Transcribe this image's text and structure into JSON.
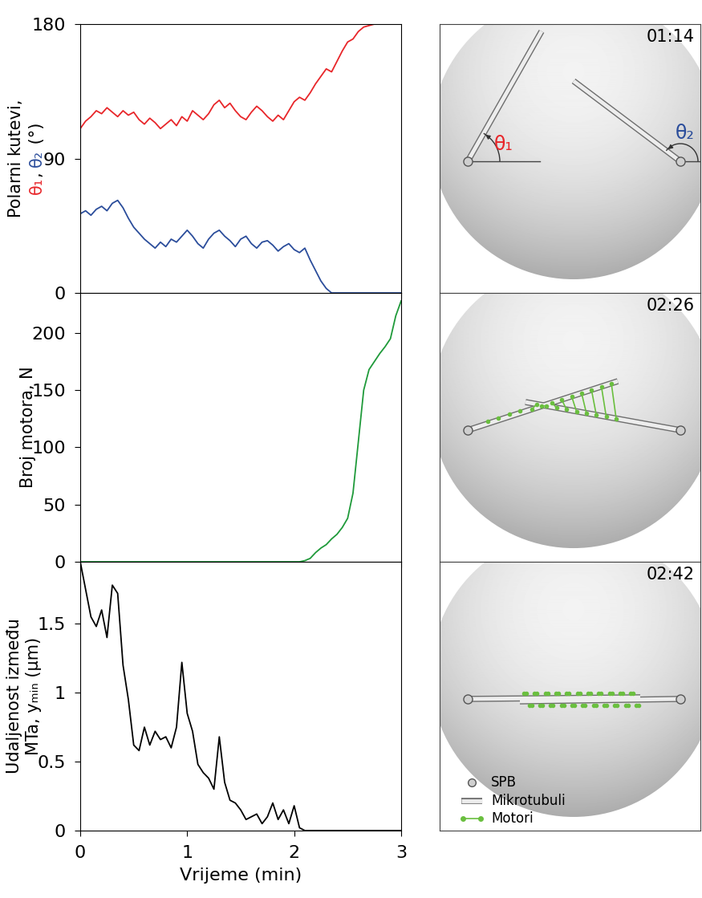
{
  "chart_data": [
    {
      "type": "line",
      "ylabel": "Polarni kutevi,",
      "ylabel_line2": [
        {
          "text": "θ₁",
          "color": "#e8262a"
        },
        {
          "text": ", ",
          "color": "#000000"
        },
        {
          "text": "θ₂",
          "color": "#2b4d9b"
        },
        {
          "text": " (°)",
          "color": "#000000"
        }
      ],
      "x": [
        0,
        0.05,
        0.1,
        0.15,
        0.2,
        0.25,
        0.3,
        0.35,
        0.4,
        0.45,
        0.5,
        0.55,
        0.6,
        0.65,
        0.7,
        0.75,
        0.8,
        0.85,
        0.9,
        0.95,
        1,
        1.05,
        1.1,
        1.15,
        1.2,
        1.25,
        1.3,
        1.35,
        1.4,
        1.45,
        1.5,
        1.55,
        1.6,
        1.65,
        1.7,
        1.75,
        1.8,
        1.85,
        1.9,
        1.95,
        2,
        2.05,
        2.1,
        2.15,
        2.2,
        2.25,
        2.3,
        2.35,
        2.4,
        2.45,
        2.5,
        2.55,
        2.6,
        2.65,
        2.7,
        2.75,
        2.8,
        2.85,
        2.9,
        2.95,
        3
      ],
      "series": [
        {
          "color": "#e8262a",
          "values": [
            110,
            115,
            118,
            122,
            120,
            124,
            121,
            118,
            122,
            119,
            121,
            116,
            113,
            117,
            114,
            110,
            113,
            116,
            112,
            118,
            115,
            122,
            119,
            116,
            120,
            126,
            129,
            124,
            127,
            122,
            118,
            116,
            121,
            125,
            122,
            118,
            115,
            119,
            116,
            122,
            128,
            131,
            129,
            134,
            140,
            145,
            150,
            148,
            155,
            162,
            168,
            170,
            175,
            178,
            179,
            180,
            180,
            180,
            180,
            180,
            180
          ]
        },
        {
          "color": "#2b4d9b",
          "values": [
            53,
            55,
            52,
            56,
            58,
            55,
            60,
            62,
            57,
            50,
            44,
            40,
            36,
            33,
            30,
            34,
            31,
            36,
            34,
            38,
            42,
            38,
            33,
            30,
            36,
            40,
            42,
            38,
            35,
            31,
            36,
            38,
            33,
            30,
            34,
            35,
            32,
            28,
            31,
            33,
            29,
            27,
            30,
            22,
            15,
            8,
            3,
            0,
            0,
            0,
            0,
            0,
            0,
            0,
            0,
            0,
            0,
            0,
            0,
            0,
            0
          ]
        }
      ],
      "xlim": [
        0,
        3
      ],
      "xticks": [
        0,
        1,
        2,
        3
      ],
      "ylim": [
        0,
        180
      ],
      "yticks": [
        0,
        90,
        180
      ],
      "tick_labels": "y"
    },
    {
      "type": "line",
      "ylabel": "Broj motora, N",
      "x": [
        0,
        0.05,
        0.1,
        0.15,
        0.2,
        0.25,
        0.3,
        0.35,
        0.4,
        0.45,
        0.5,
        0.55,
        0.6,
        0.65,
        0.7,
        0.75,
        0.8,
        0.85,
        0.9,
        0.95,
        1,
        1.05,
        1.1,
        1.15,
        1.2,
        1.25,
        1.3,
        1.35,
        1.4,
        1.45,
        1.5,
        1.55,
        1.6,
        1.65,
        1.7,
        1.75,
        1.8,
        1.85,
        1.9,
        1.95,
        2,
        2.05,
        2.1,
        2.15,
        2.2,
        2.25,
        2.3,
        2.35,
        2.4,
        2.45,
        2.5,
        2.55,
        2.6,
        2.65,
        2.7,
        2.75,
        2.8,
        2.85,
        2.9,
        2.95,
        3
      ],
      "series": [
        {
          "color": "#1f9a3a",
          "values": [
            0,
            0,
            0,
            0,
            0,
            0,
            0,
            0,
            0,
            0,
            0,
            0,
            0,
            0,
            0,
            0,
            0,
            0,
            0,
            0,
            0,
            0,
            0,
            0,
            0,
            0,
            0,
            0,
            0,
            0,
            0,
            0,
            0,
            0,
            0,
            0,
            0,
            0,
            0,
            0,
            0,
            0,
            1,
            3,
            8,
            12,
            15,
            20,
            24,
            30,
            38,
            60,
            105,
            150,
            168,
            175,
            182,
            188,
            195,
            215,
            228
          ]
        }
      ],
      "xlim": [
        0,
        3
      ],
      "xticks": [
        0,
        1,
        2,
        3
      ],
      "ylim": [
        0,
        235
      ],
      "yticks": [
        0,
        50,
        100,
        150,
        200
      ],
      "tick_labels": "y"
    },
    {
      "type": "line",
      "ylabel": "Udaljenost između\nMTa, yₘᵢₙ (µm)",
      "xlabel": "Vrijeme (min)",
      "x": [
        0,
        0.05,
        0.1,
        0.15,
        0.2,
        0.25,
        0.3,
        0.35,
        0.4,
        0.45,
        0.5,
        0.55,
        0.6,
        0.65,
        0.7,
        0.75,
        0.8,
        0.85,
        0.9,
        0.95,
        1,
        1.05,
        1.1,
        1.15,
        1.2,
        1.25,
        1.3,
        1.35,
        1.4,
        1.45,
        1.5,
        1.55,
        1.6,
        1.65,
        1.7,
        1.75,
        1.8,
        1.85,
        1.9,
        1.95,
        2,
        2.05,
        2.1,
        2.15,
        2.2,
        2.25,
        2.3,
        2.35,
        2.4,
        2.45,
        2.5,
        2.55,
        2.6,
        2.65,
        2.7,
        2.75,
        2.8,
        2.85,
        2.9,
        2.95,
        3
      ],
      "series": [
        {
          "color": "#000000",
          "values": [
            1.95,
            1.75,
            1.55,
            1.48,
            1.6,
            1.4,
            1.78,
            1.72,
            1.2,
            0.95,
            0.62,
            0.58,
            0.75,
            0.62,
            0.72,
            0.66,
            0.68,
            0.6,
            0.75,
            1.22,
            0.85,
            0.72,
            0.48,
            0.42,
            0.38,
            0.3,
            0.68,
            0.35,
            0.22,
            0.2,
            0.15,
            0.08,
            0.1,
            0.12,
            0.05,
            0.1,
            0.2,
            0.08,
            0.15,
            0.05,
            0.18,
            0.02,
            0,
            0,
            0,
            0,
            0,
            0,
            0,
            0,
            0,
            0,
            0,
            0,
            0,
            0,
            0,
            0,
            0,
            0,
            0
          ]
        }
      ],
      "xlim": [
        0,
        3
      ],
      "xticks": [
        0,
        1,
        2,
        3
      ],
      "ylim": [
        0,
        1.95
      ],
      "yticks": [
        0,
        0.5,
        1,
        1.5
      ]
    }
  ],
  "snapshots": [
    {
      "time": "01:14",
      "angle_labels": [
        "θ₁",
        "θ₂"
      ]
    },
    {
      "time": "02:26"
    },
    {
      "time": "02:42"
    }
  ],
  "snapshot_legend": [
    "SPB",
    "Mikrotubuli",
    "Motori"
  ]
}
